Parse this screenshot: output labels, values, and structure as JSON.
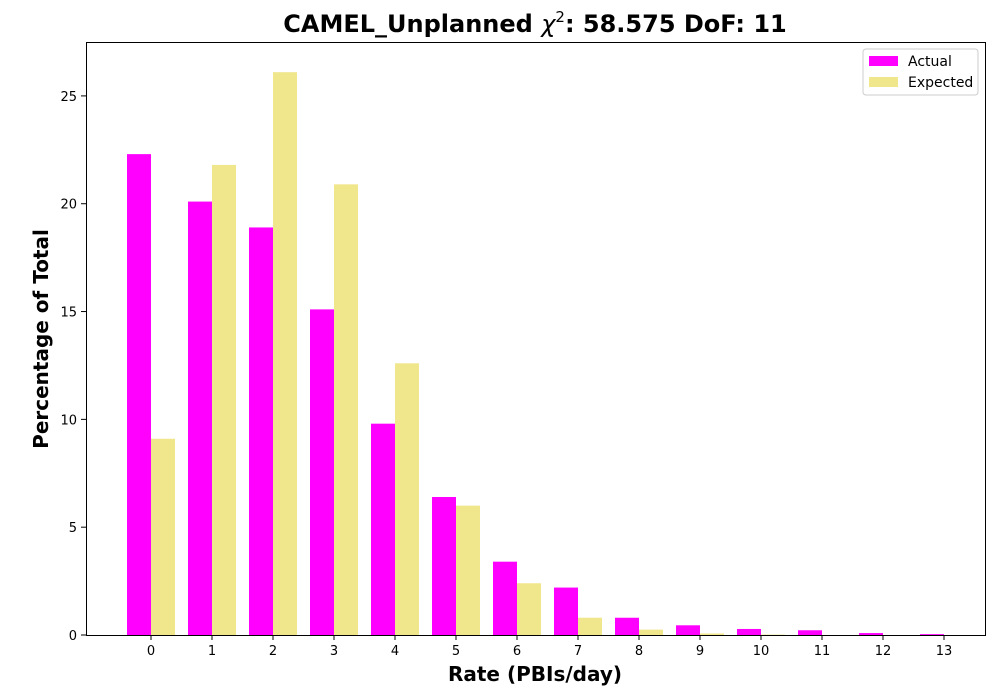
{
  "chart_data": {
    "type": "bar",
    "title_prefix": "CAMEL_Unplanned ",
    "title_chi": "χ",
    "title_sup": "2",
    "title_suffix": ": 58.575 DoF: 11",
    "xlabel": "Rate (PBIs/day)",
    "ylabel": "Percentage of Total",
    "categories": [
      "0",
      "1",
      "2",
      "3",
      "4",
      "5",
      "6",
      "7",
      "8",
      "9",
      "10",
      "11",
      "12",
      "13"
    ],
    "ylim": [
      0,
      27.5
    ],
    "yticks": [
      "0",
      "5",
      "10",
      "15",
      "20",
      "25"
    ],
    "grid": false,
    "legend_position": "top-right",
    "series": [
      {
        "name": "Actual",
        "color": "#ff00ff",
        "values": [
          22.3,
          20.1,
          18.9,
          15.1,
          9.8,
          6.4,
          3.4,
          2.2,
          0.8,
          0.45,
          0.28,
          0.22,
          0.09,
          0.04
        ]
      },
      {
        "name": "Expected",
        "color": "#f0e68c",
        "values": [
          9.1,
          21.8,
          26.1,
          20.9,
          12.6,
          6.0,
          2.4,
          0.8,
          0.25,
          0.07,
          0.02,
          0.0,
          0.0,
          0.0
        ]
      }
    ]
  }
}
